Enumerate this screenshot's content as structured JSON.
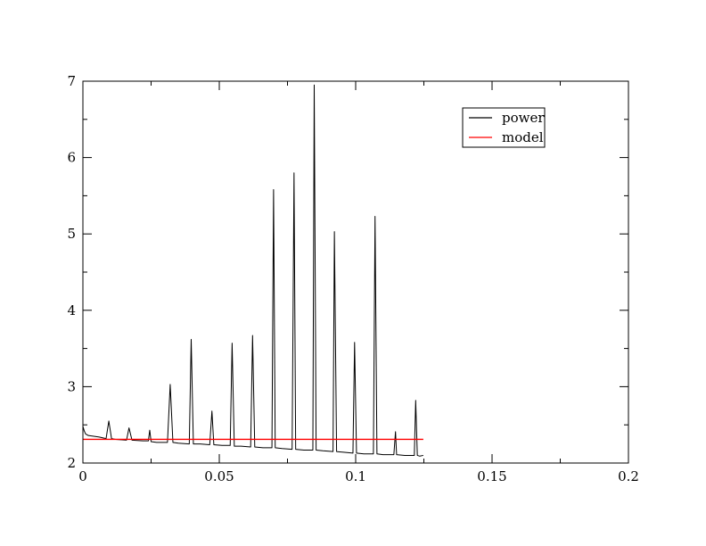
{
  "chart_data": {
    "type": "line",
    "title": "",
    "xlabel": "",
    "ylabel": "",
    "xlim": [
      0,
      0.2
    ],
    "ylim": [
      2,
      7
    ],
    "x_ticks": [
      0,
      0.05,
      0.1,
      0.15,
      0.2
    ],
    "x_tick_labels": [
      "0",
      "0.05",
      "0.1",
      "0.15",
      "0.2"
    ],
    "y_ticks": [
      2,
      3,
      4,
      5,
      6,
      7
    ],
    "y_tick_labels": [
      "2",
      "3",
      "4",
      "5",
      "6",
      "7"
    ],
    "grid": false,
    "legend": {
      "placement": "top-right"
    },
    "series": [
      {
        "name": "power",
        "color": "#000000",
        "x": [
          0,
          0.0005,
          0.001,
          0.002,
          0.004,
          0.006,
          0.0085,
          0.0095,
          0.0105,
          0.012,
          0.016,
          0.0169,
          0.018,
          0.022,
          0.024,
          0.0245,
          0.025,
          0.027,
          0.031,
          0.032,
          0.033,
          0.035,
          0.039,
          0.0397,
          0.0405,
          0.043,
          0.0465,
          0.0473,
          0.048,
          0.051,
          0.054,
          0.0547,
          0.0555,
          0.058,
          0.0615,
          0.0622,
          0.063,
          0.066,
          0.0693,
          0.0699,
          0.0705,
          0.073,
          0.0767,
          0.0774,
          0.078,
          0.081,
          0.0843,
          0.0848,
          0.0855,
          0.088,
          0.0917,
          0.0922,
          0.093,
          0.096,
          0.099,
          0.0996,
          0.1003,
          0.103,
          0.1065,
          0.1071,
          0.1078,
          0.11,
          0.114,
          0.1146,
          0.115,
          0.118,
          0.1215,
          0.122,
          0.1226,
          0.1235,
          0.1248
        ],
        "y": [
          2.48,
          2.42,
          2.38,
          2.36,
          2.35,
          2.34,
          2.32,
          2.55,
          2.32,
          2.31,
          2.3,
          2.46,
          2.3,
          2.29,
          2.29,
          2.43,
          2.28,
          2.27,
          2.27,
          3.03,
          2.27,
          2.26,
          2.25,
          3.62,
          2.25,
          2.25,
          2.24,
          2.68,
          2.24,
          2.23,
          2.23,
          3.57,
          2.22,
          2.22,
          2.21,
          3.67,
          2.21,
          2.2,
          2.2,
          5.58,
          2.2,
          2.19,
          2.18,
          5.8,
          2.18,
          2.17,
          2.17,
          6.95,
          2.17,
          2.16,
          2.15,
          5.03,
          2.15,
          2.14,
          2.13,
          3.58,
          2.13,
          2.12,
          2.12,
          5.23,
          2.12,
          2.11,
          2.11,
          2.41,
          2.11,
          2.1,
          2.1,
          2.82,
          2.1,
          2.09,
          2.1
        ]
      },
      {
        "name": "model",
        "color": "#ff0000",
        "x": [
          0,
          0.1248
        ],
        "y": [
          2.31,
          2.31
        ]
      }
    ]
  }
}
